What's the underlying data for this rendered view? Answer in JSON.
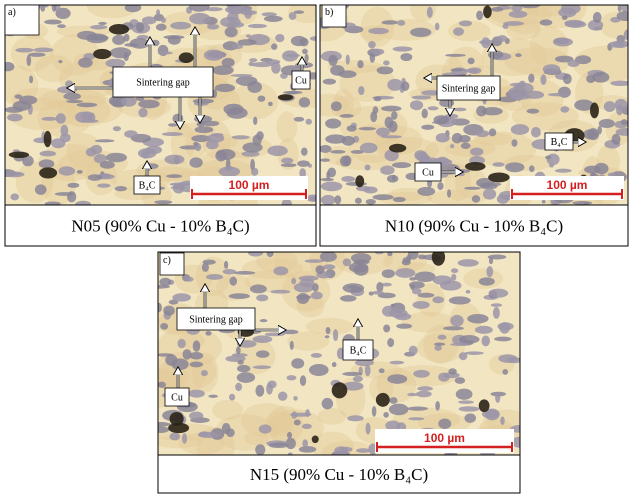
{
  "panels": [
    {
      "label": "a)",
      "caption": "N05 (90% Cu - 10% B₄C)",
      "scale_bar": "100 µm",
      "annotations": [
        "Sintering gap",
        "Cu",
        "B₄C"
      ]
    },
    {
      "label": "b)",
      "caption": "N10 (90% Cu - 10% B₄C)",
      "scale_bar": "100 µm",
      "annotations": [
        "Sintering gap",
        "B₄C",
        "Cu"
      ]
    },
    {
      "label": "c)",
      "caption": "N15 (90% Cu - 10% B₄C)",
      "scale_bar": "100 µm",
      "annotations": [
        "Sintering gap",
        "B₄C",
        "Cu"
      ]
    }
  ]
}
